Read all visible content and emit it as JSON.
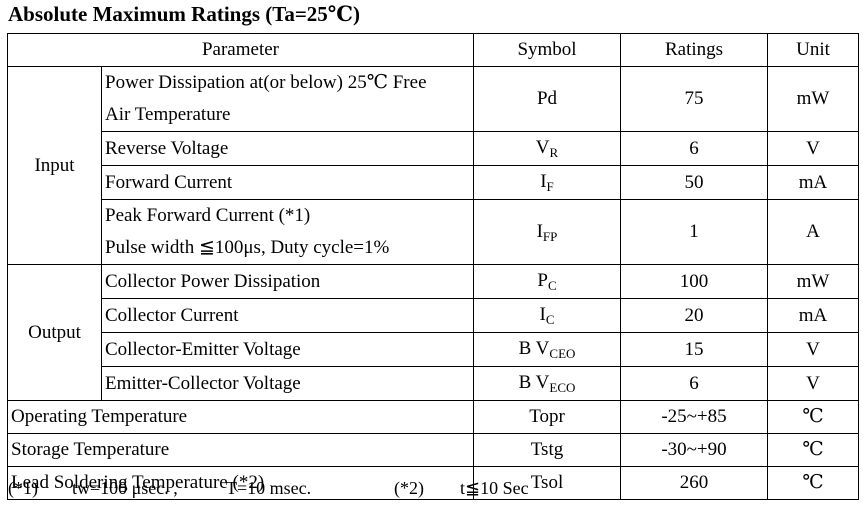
{
  "title": "Absolute Maximum Ratings (Ta=25℃)",
  "header": {
    "parameter": "Parameter",
    "symbol": "Symbol",
    "ratings": "Ratings",
    "unit": "Unit"
  },
  "groups": {
    "input": "Input",
    "output": "Output"
  },
  "rows": [
    {
      "param_line1": "Power Dissipation at(or below) 25℃ Free",
      "param_line2": "Air Temperature",
      "symbol": "Pd",
      "rating": "75",
      "unit": "mW"
    },
    {
      "param": "Reverse Voltage",
      "symbol_main": "V",
      "symbol_sub": "R",
      "rating": "6",
      "unit": "V"
    },
    {
      "param": "Forward Current",
      "symbol_main": "I",
      "symbol_sub": "F",
      "rating": "50",
      "unit": "mA"
    },
    {
      "param_line1": "Peak Forward Current (*1)",
      "param_line2": "Pulse width ≦100μs, Duty cycle=1%",
      "symbol_main": "I",
      "symbol_sub": "FP",
      "rating": "1",
      "unit": "A"
    },
    {
      "param": "Collector Power Dissipation",
      "symbol_main": "P",
      "symbol_sub": "C",
      "rating": "100",
      "unit": "mW"
    },
    {
      "param": "Collector Current",
      "symbol_main": "I",
      "symbol_sub": "C",
      "rating": "20",
      "unit": "mA"
    },
    {
      "param": "Collector-Emitter Voltage",
      "symbol_main": "B V",
      "symbol_sub": "CEO",
      "rating": "15",
      "unit": "V"
    },
    {
      "param": "Emitter-Collector Voltage",
      "symbol_main": "B V",
      "symbol_sub": "ECO",
      "rating": "6",
      "unit": "V"
    },
    {
      "param": "Operating Temperature",
      "symbol": "Topr",
      "rating": "-25~+85",
      "unit": "℃"
    },
    {
      "param": "Storage Temperature",
      "symbol": "Tstg",
      "rating": "-30~+90",
      "unit": "℃"
    },
    {
      "param": "Lead Soldering Temperature (*2)",
      "symbol": "Tsol",
      "rating": "260",
      "unit": "℃"
    }
  ],
  "footnotes": {
    "note1_marker": "(*1)",
    "note1_tw": "tw=100 μsec. ,",
    "note1_t": "T=10 msec.",
    "note2_marker": "(*2)",
    "note2_text": "t≦10 Sec"
  }
}
